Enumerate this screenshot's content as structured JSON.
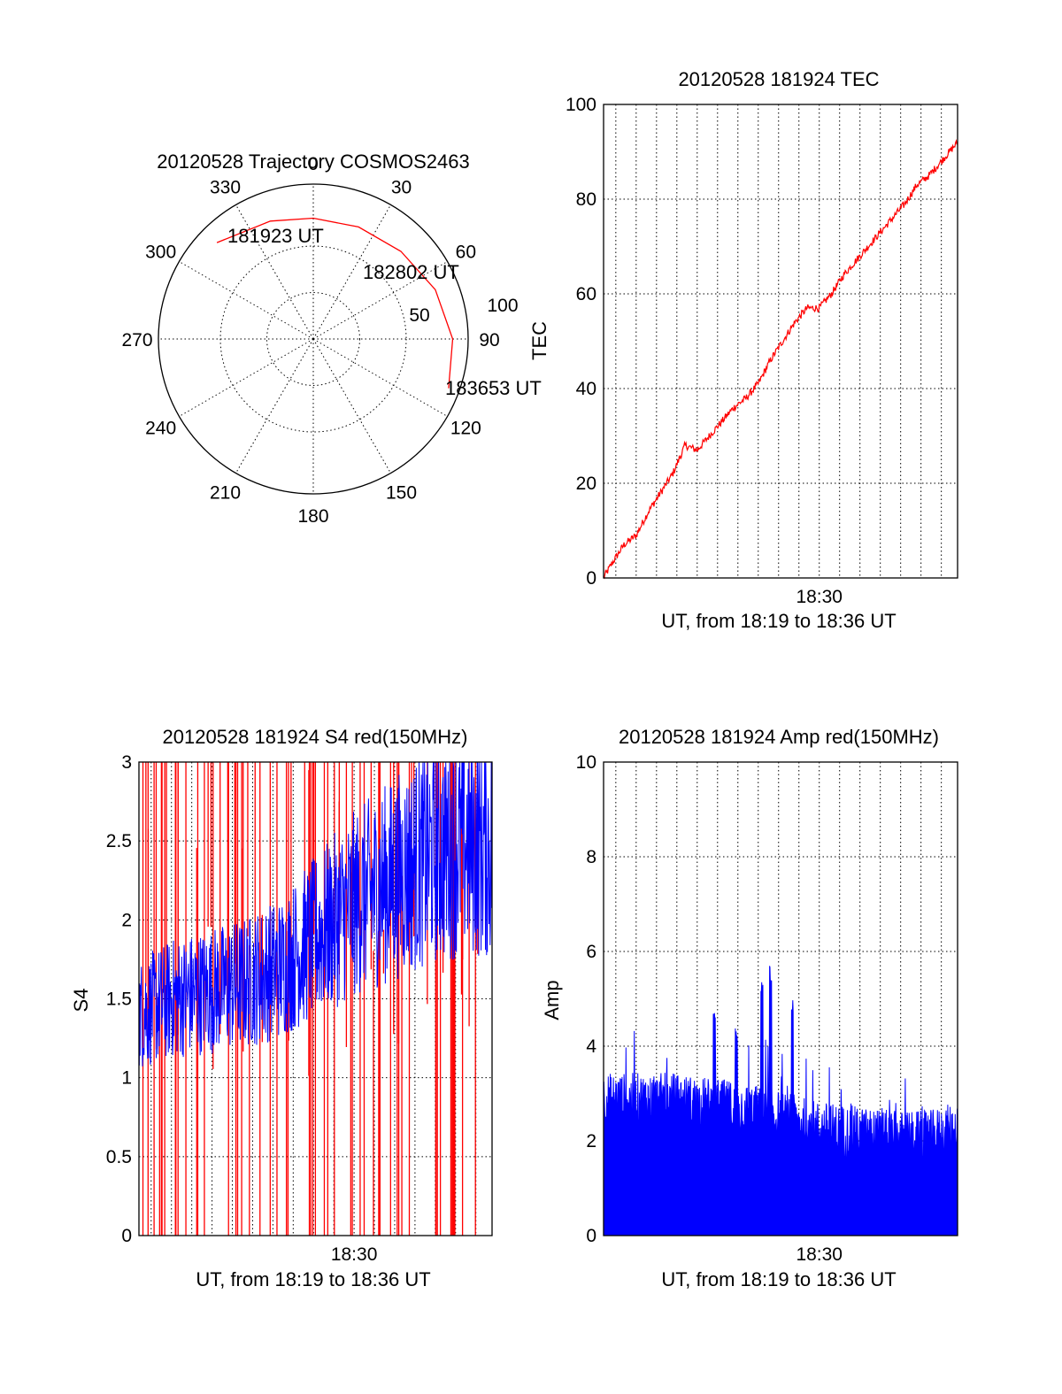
{
  "chart_data": [
    {
      "type": "polar",
      "title": "20120528 Trajectory COSMOS2463",
      "angle_labels": [
        "0",
        "30",
        "60",
        "90",
        "120",
        "150",
        "180",
        "210",
        "240",
        "270",
        "300",
        "330"
      ],
      "radial_labels": [
        "50",
        "100"
      ],
      "rlim": [
        0,
        100
      ],
      "track_color": "#ff0000",
      "track": [
        {
          "azimuth": 315,
          "zenith_angle": 88
        },
        {
          "azimuth": 340,
          "zenith_angle": 81
        },
        {
          "azimuth": 0,
          "zenith_angle": 78
        },
        {
          "azimuth": 22,
          "zenith_angle": 78
        },
        {
          "azimuth": 45,
          "zenith_angle": 80
        },
        {
          "azimuth": 68,
          "zenith_angle": 85
        },
        {
          "azimuth": 90,
          "zenith_angle": 90
        },
        {
          "azimuth": 110,
          "zenith_angle": 93
        }
      ],
      "annotations": [
        {
          "text": "181923 UT",
          "at": "start"
        },
        {
          "text": "182802 UT",
          "at": "middle"
        },
        {
          "text": "183653 UT",
          "at": "end"
        }
      ]
    },
    {
      "type": "line",
      "title": "20120528 181924 TEC",
      "xlabel": "UT, from 18:19 to 18:36 UT",
      "ylabel": "TEC",
      "xlim": [
        18.3233,
        18.6133
      ],
      "ylim": [
        0,
        100
      ],
      "yticks": [
        "0",
        "20",
        "40",
        "60",
        "80",
        "100"
      ],
      "xtick_label": "18:30",
      "xtick_value": 18.5,
      "color": "#ff0000",
      "series": [
        {
          "name": "TEC",
          "points": [
            [
              18.3233,
              0
            ],
            [
              18.33,
              3
            ],
            [
              18.34,
              7
            ],
            [
              18.35,
              9
            ],
            [
              18.36,
              14
            ],
            [
              18.37,
              18
            ],
            [
              18.38,
              22
            ],
            [
              18.39,
              28
            ],
            [
              18.4,
              27
            ],
            [
              18.41,
              30
            ],
            [
              18.42,
              33
            ],
            [
              18.43,
              36
            ],
            [
              18.44,
              38
            ],
            [
              18.45,
              41
            ],
            [
              18.46,
              46
            ],
            [
              18.47,
              50
            ],
            [
              18.48,
              54
            ],
            [
              18.49,
              57
            ],
            [
              18.5,
              57
            ],
            [
              18.51,
              60
            ],
            [
              18.52,
              64
            ],
            [
              18.53,
              67
            ],
            [
              18.54,
              70
            ],
            [
              18.55,
              73
            ],
            [
              18.56,
              76
            ],
            [
              18.57,
              79
            ],
            [
              18.58,
              83
            ],
            [
              18.59,
              85
            ],
            [
              18.6,
              88
            ],
            [
              18.6133,
              92
            ]
          ]
        }
      ]
    },
    {
      "type": "line",
      "title": "20120528 181924 S4 red(150MHz)",
      "xlabel": "UT, from 18:19 to 18:36 UT",
      "ylabel": "S4",
      "xlim": [
        18.3233,
        18.6133
      ],
      "ylim": [
        0,
        3
      ],
      "yticks": [
        "0",
        "0.5",
        "1",
        "1.5",
        "2",
        "2.5",
        "3"
      ],
      "xtick_label": "18:30",
      "xtick_value": 18.5,
      "series": [
        {
          "name": "S4",
          "color": "#0000ff",
          "trend": [
            [
              18.3233,
              1.4
            ],
            [
              18.35,
              1.5
            ],
            [
              18.38,
              1.55
            ],
            [
              18.41,
              1.6
            ],
            [
              18.44,
              1.7
            ],
            [
              18.47,
              1.9
            ],
            [
              18.5,
              2.1
            ],
            [
              18.53,
              2.25
            ],
            [
              18.56,
              2.4
            ],
            [
              18.59,
              2.5
            ],
            [
              18.6133,
              2.45
            ]
          ],
          "noise": 0.35
        },
        {
          "name": "S4 spikes",
          "color": "#ff0000",
          "description": "vertical spikes spanning 0 to 3"
        }
      ]
    },
    {
      "type": "area",
      "title": "20120528 181924 Amp red(150MHz)",
      "xlabel": "UT, from 18:19 to 18:36 UT",
      "ylabel": "Amp",
      "xlim": [
        18.3233,
        18.6133
      ],
      "ylim": [
        0,
        10
      ],
      "yticks": [
        "0",
        "2",
        "4",
        "6",
        "8",
        "10"
      ],
      "xtick_label": "18:30",
      "xtick_value": 18.5,
      "color": "#0000ff",
      "series": [
        {
          "name": "Amp",
          "trend": [
            [
              18.3233,
              2.6
            ],
            [
              18.35,
              2.6
            ],
            [
              18.38,
              2.6
            ],
            [
              18.41,
              2.5
            ],
            [
              18.44,
              2.4
            ],
            [
              18.47,
              2.2
            ],
            [
              18.5,
              2.0
            ],
            [
              18.53,
              1.9
            ],
            [
              18.56,
              1.8
            ],
            [
              18.59,
              1.8
            ],
            [
              18.6133,
              2.0
            ]
          ],
          "noise": 0.6,
          "peaks": [
            [
              18.414,
              4.7
            ],
            [
              18.432,
              4.5
            ],
            [
              18.453,
              5.4
            ],
            [
              18.46,
              5.7
            ],
            [
              18.478,
              5.0
            ]
          ]
        }
      ]
    }
  ]
}
